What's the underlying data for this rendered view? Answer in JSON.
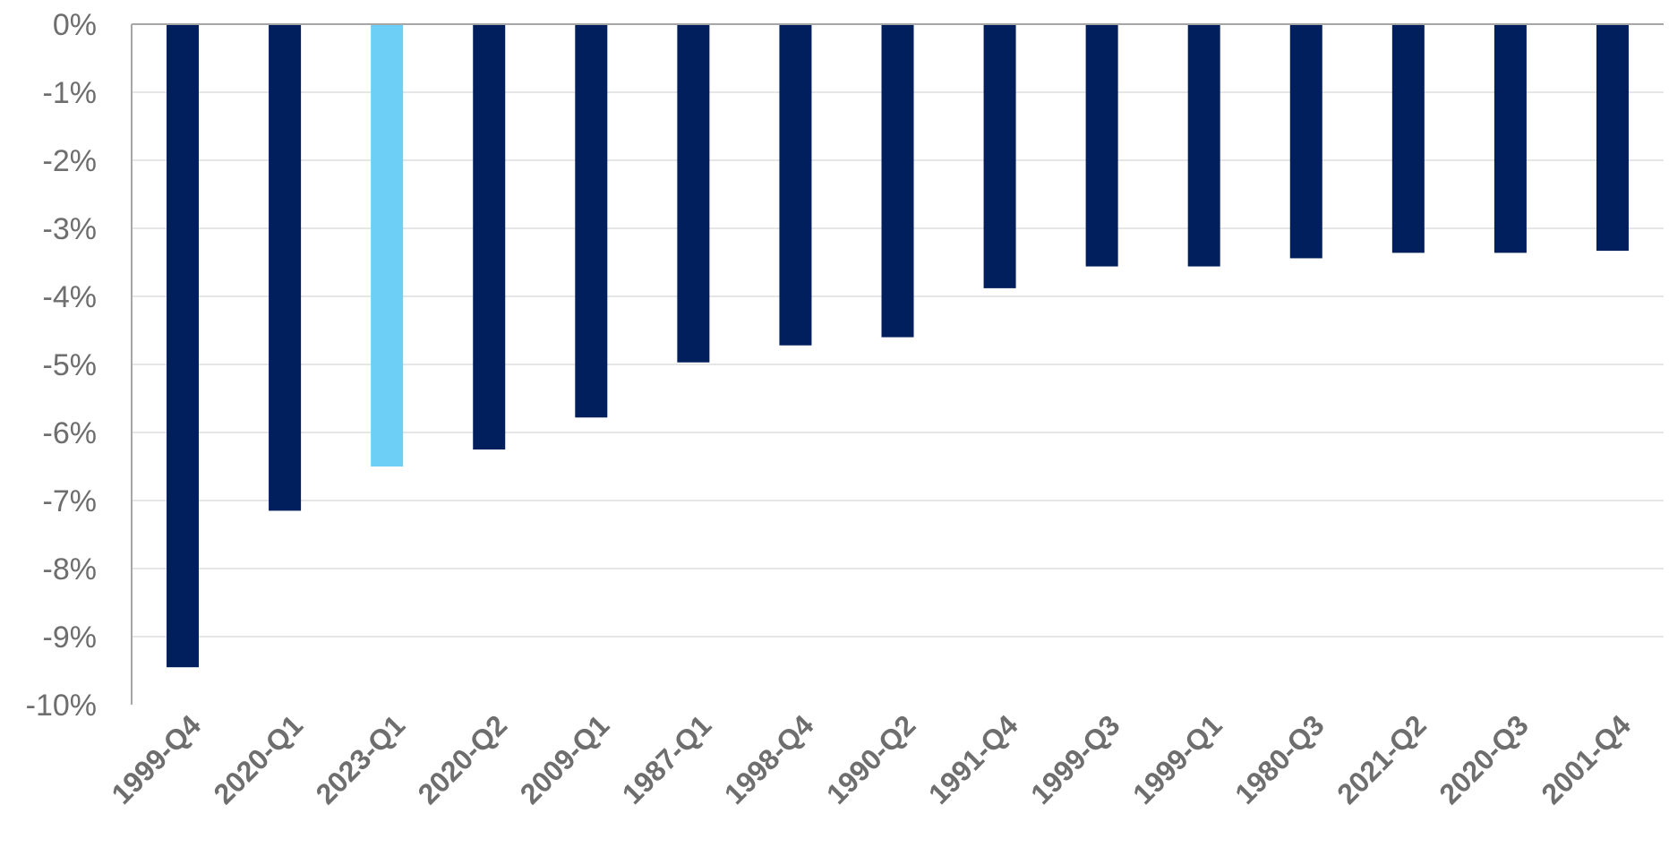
{
  "chart_data": {
    "type": "bar",
    "categories": [
      "1999-Q4",
      "2020-Q1",
      "2023-Q1",
      "2020-Q2",
      "2009-Q1",
      "1987-Q1",
      "1998-Q4",
      "1990-Q2",
      "1991-Q4",
      "1999-Q3",
      "1999-Q1",
      "1980-Q3",
      "2021-Q2",
      "2020-Q3",
      "2001-Q4"
    ],
    "values": [
      -9.45,
      -7.15,
      -6.5,
      -6.25,
      -5.78,
      -4.97,
      -4.72,
      -4.6,
      -3.88,
      -3.56,
      -3.56,
      -3.44,
      -3.36,
      -3.36,
      -3.33
    ],
    "bar_colors": [
      "#001f5c",
      "#001f5c",
      "#6dcff6",
      "#001f5c",
      "#001f5c",
      "#001f5c",
      "#001f5c",
      "#001f5c",
      "#001f5c",
      "#001f5c",
      "#001f5c",
      "#001f5c",
      "#001f5c",
      "#001f5c",
      "#001f5c"
    ],
    "yticks": [
      "0%",
      "-1%",
      "-2%",
      "-3%",
      "-4%",
      "-5%",
      "-6%",
      "-7%",
      "-8%",
      "-9%",
      "-10%"
    ],
    "ylim": [
      -10,
      0
    ],
    "title": "",
    "xlabel": "",
    "ylabel": "",
    "grid": true,
    "legend": "none"
  }
}
